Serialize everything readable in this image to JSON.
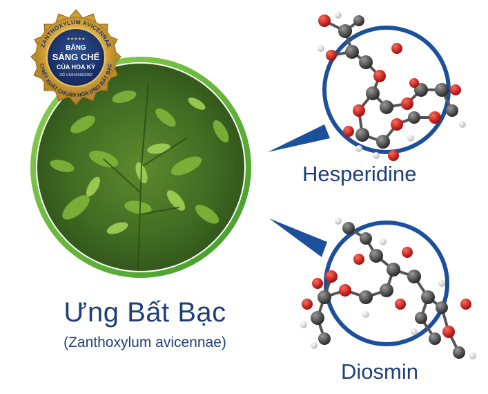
{
  "badge": {
    "top_arc": "ZANTHOXYLUM AVICENNAE",
    "stars": "★★★★★",
    "line1": "BẰNG",
    "line2": "SÁNG CHẾ",
    "line3": "CỦA HOA KỲ",
    "patent": "SỐ US8409663282",
    "bottom_arc": "CHIẾT XUẤT CHUẨN HÓA ƯNG BẤT BẠC"
  },
  "plant": {
    "name": "Ưng Bất Bạc",
    "scientific_name": "(Zanthoxylum avicennae)"
  },
  "molecules": [
    {
      "name": "Hesperidine"
    },
    {
      "name": "Diosmin"
    }
  ],
  "colors": {
    "navy": "#1f3e7a",
    "green_ring": "#5fb63a",
    "callout_blue": "#1c4f9c",
    "gold": "#d4a43a"
  }
}
